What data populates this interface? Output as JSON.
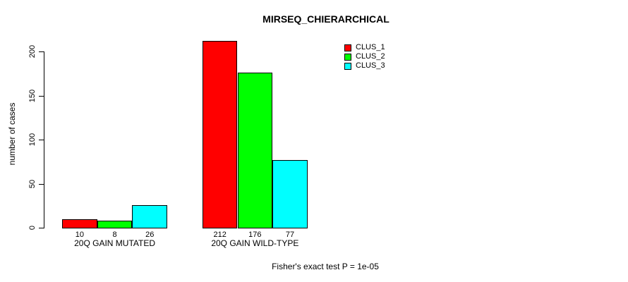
{
  "chart_data": {
    "type": "bar",
    "title": "MIRSEQ_CHIERARCHICAL",
    "xlabel": "",
    "ylabel": "number of cases",
    "ylim": [
      0,
      200
    ],
    "yticks": [
      0,
      50,
      100,
      150,
      200
    ],
    "grid": false,
    "legend_position": "top-right",
    "categories": [
      "20Q GAIN MUTATED",
      "20Q GAIN WILD-TYPE"
    ],
    "series": [
      {
        "name": "CLUS_1",
        "color": "#ff0000",
        "values": [
          10,
          212
        ]
      },
      {
        "name": "CLUS_2",
        "color": "#00ff00",
        "values": [
          8,
          176
        ]
      },
      {
        "name": "CLUS_3",
        "color": "#00ffff",
        "values": [
          26,
          77
        ]
      }
    ],
    "bar_value_labels": [
      [
        "10",
        "8",
        "26"
      ],
      [
        "212",
        "176",
        "77"
      ]
    ],
    "annotation": "Fisher's exact test P = 1e-05"
  },
  "colors": {
    "background": "#ffffff",
    "axis": "#000000",
    "clus_1": "#ff0000",
    "clus_2": "#00ff00",
    "clus_3": "#00ffff"
  }
}
